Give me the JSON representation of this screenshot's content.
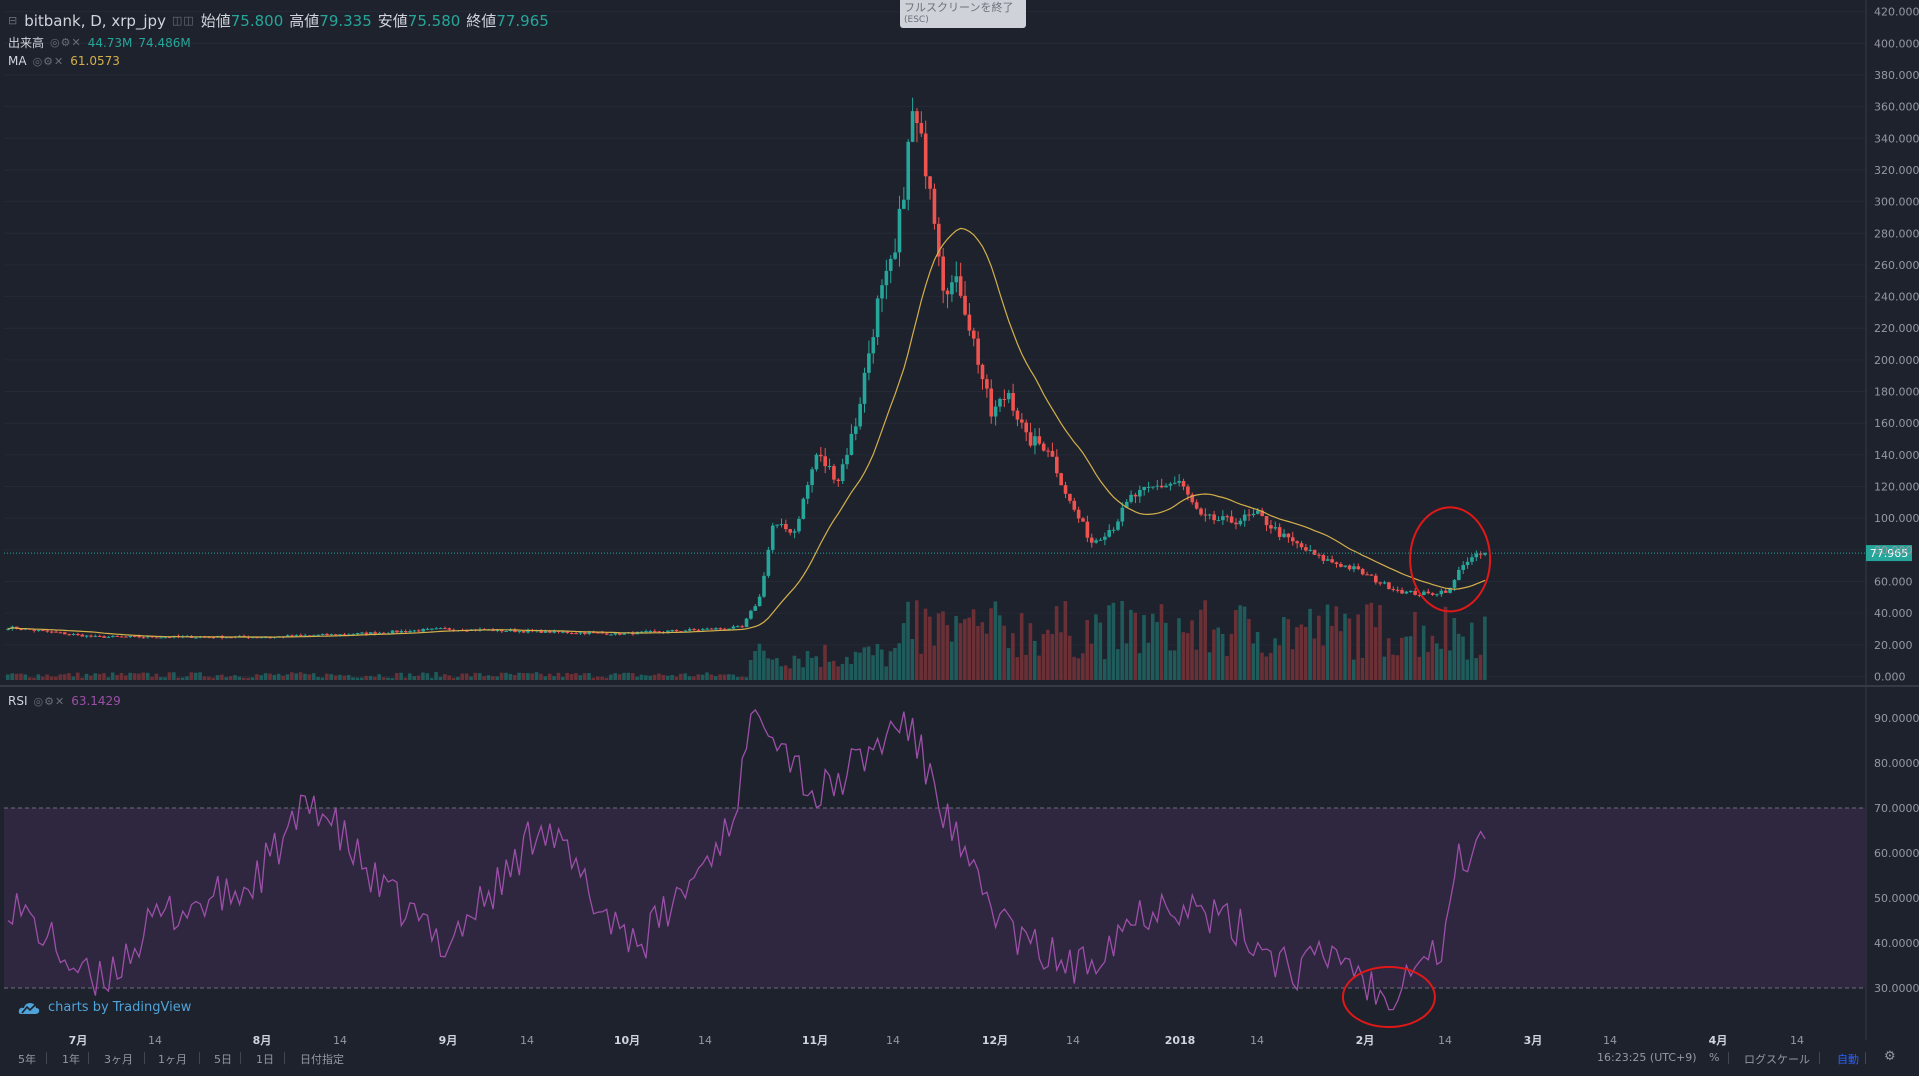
{
  "header": {
    "symbol": "bitbank, D, xrp_jpy",
    "open_label": "始値",
    "open_value": "75.800",
    "high_label": "高値",
    "high_value": "79.335",
    "low_label": "安値",
    "low_value": "75.580",
    "close_label": "終値",
    "close_value": "77.965"
  },
  "volume_legend": {
    "label": "出来高",
    "v1": "44.73M",
    "v2": "74.486M"
  },
  "ma_legend": {
    "label": "MA",
    "value": "61.0573"
  },
  "rsi_legend": {
    "label": "RSI",
    "value": "63.1429"
  },
  "fullscreen_tip": {
    "text": "フルスクリーンを終了",
    "key": "(ESC)"
  },
  "credit": "charts by TradingView",
  "bottom_bar": {
    "ranges": [
      "5年",
      "1年",
      "3ヶ月",
      "1ヶ月",
      "5日",
      "1日",
      "日付指定"
    ],
    "time": "16:23:25 (UTC+9)",
    "percent": "%",
    "log": "ログスケール",
    "auto": "自動"
  },
  "colors": {
    "up": "#26a69a",
    "down": "#ef5350",
    "ma": "#d4b04a",
    "rsi": "#9c4fa8",
    "rsi_band": "#2f2640",
    "bg": "#1e222d",
    "annotation": "#e01818"
  },
  "chart_data": {
    "type": "candlestick",
    "price_axis": {
      "min": 0,
      "max": 420,
      "ticks": [
        "420.000",
        "400.000",
        "380.000",
        "360.000",
        "340.000",
        "320.000",
        "300.000",
        "280.000",
        "260.000",
        "240.000",
        "220.000",
        "200.000",
        "180.000",
        "160.000",
        "140.000",
        "120.000",
        "100.000",
        "80.000",
        "60.000",
        "40.000",
        "20.000",
        "0.000"
      ]
    },
    "last_price_label": "77.965",
    "rsi_axis": {
      "min": 20,
      "max": 95,
      "ticks": [
        "90.0000",
        "80.0000",
        "70.0000",
        "60.0000",
        "50.0000",
        "40.0000",
        "30.0000"
      ],
      "band": [
        30,
        70
      ]
    },
    "x_tick_labels": [
      "7月",
      "14",
      "8月",
      "14",
      "9月",
      "14",
      "10月",
      "14",
      "11月",
      "14",
      "12月",
      "14",
      "2018",
      "14",
      "2月",
      "14",
      "3月",
      "14",
      "4月",
      "14"
    ],
    "series_keyframes": [
      {
        "day": 0,
        "price": 31
      },
      {
        "day": 20,
        "price": 25
      },
      {
        "day": 60,
        "price": 25
      },
      {
        "day": 80,
        "price": 27
      },
      {
        "day": 100,
        "price": 30
      },
      {
        "day": 140,
        "price": 27
      },
      {
        "day": 168,
        "price": 31
      },
      {
        "day": 172,
        "price": 50
      },
      {
        "day": 175,
        "price": 95
      },
      {
        "day": 180,
        "price": 92
      },
      {
        "day": 185,
        "price": 140
      },
      {
        "day": 190,
        "price": 125
      },
      {
        "day": 194,
        "price": 160
      },
      {
        "day": 199,
        "price": 235
      },
      {
        "day": 203,
        "price": 265
      },
      {
        "day": 207,
        "price": 355
      },
      {
        "day": 211,
        "price": 315
      },
      {
        "day": 214,
        "price": 250
      },
      {
        "day": 218,
        "price": 245
      },
      {
        "day": 222,
        "price": 200
      },
      {
        "day": 225,
        "price": 165
      },
      {
        "day": 229,
        "price": 180
      },
      {
        "day": 233,
        "price": 150
      },
      {
        "day": 238,
        "price": 145
      },
      {
        "day": 243,
        "price": 110
      },
      {
        "day": 248,
        "price": 85
      },
      {
        "day": 253,
        "price": 95
      },
      {
        "day": 257,
        "price": 113
      },
      {
        "day": 263,
        "price": 120
      },
      {
        "day": 268,
        "price": 123
      },
      {
        "day": 273,
        "price": 100
      },
      {
        "day": 280,
        "price": 98
      },
      {
        "day": 286,
        "price": 102
      },
      {
        "day": 292,
        "price": 88
      },
      {
        "day": 300,
        "price": 75
      },
      {
        "day": 308,
        "price": 68
      },
      {
        "day": 315,
        "price": 58
      },
      {
        "day": 320,
        "price": 53
      },
      {
        "day": 325,
        "price": 52
      },
      {
        "day": 330,
        "price": 55
      },
      {
        "day": 333,
        "price": 72
      },
      {
        "day": 338,
        "price": 77.965
      }
    ],
    "rsi_keyframes": [
      {
        "day": 0,
        "rsi": 50
      },
      {
        "day": 20,
        "rsi": 30
      },
      {
        "day": 35,
        "rsi": 46
      },
      {
        "day": 55,
        "rsi": 52
      },
      {
        "day": 70,
        "rsi": 72
      },
      {
        "day": 85,
        "rsi": 52
      },
      {
        "day": 100,
        "rsi": 40
      },
      {
        "day": 115,
        "rsi": 56
      },
      {
        "day": 122,
        "rsi": 68
      },
      {
        "day": 135,
        "rsi": 48
      },
      {
        "day": 145,
        "rsi": 40
      },
      {
        "day": 155,
        "rsi": 52
      },
      {
        "day": 165,
        "rsi": 66
      },
      {
        "day": 172,
        "rsi": 94
      },
      {
        "day": 185,
        "rsi": 72
      },
      {
        "day": 198,
        "rsi": 83
      },
      {
        "day": 205,
        "rsi": 90
      },
      {
        "day": 212,
        "rsi": 75
      },
      {
        "day": 220,
        "rsi": 55
      },
      {
        "day": 232,
        "rsi": 40
      },
      {
        "day": 245,
        "rsi": 34
      },
      {
        "day": 255,
        "rsi": 44
      },
      {
        "day": 265,
        "rsi": 50
      },
      {
        "day": 280,
        "rsi": 44
      },
      {
        "day": 295,
        "rsi": 34
      },
      {
        "day": 305,
        "rsi": 38
      },
      {
        "day": 315,
        "rsi": 27
      },
      {
        "day": 322,
        "rsi": 38
      },
      {
        "day": 328,
        "rsi": 38
      },
      {
        "day": 332,
        "rsi": 58
      },
      {
        "day": 338,
        "rsi": 63.14
      }
    ],
    "annotations": [
      {
        "shape": "ellipse",
        "pane": "price",
        "day": 330,
        "price": 74
      },
      {
        "shape": "ellipse",
        "pane": "rsi",
        "day": 316,
        "rsi": 28
      }
    ]
  }
}
